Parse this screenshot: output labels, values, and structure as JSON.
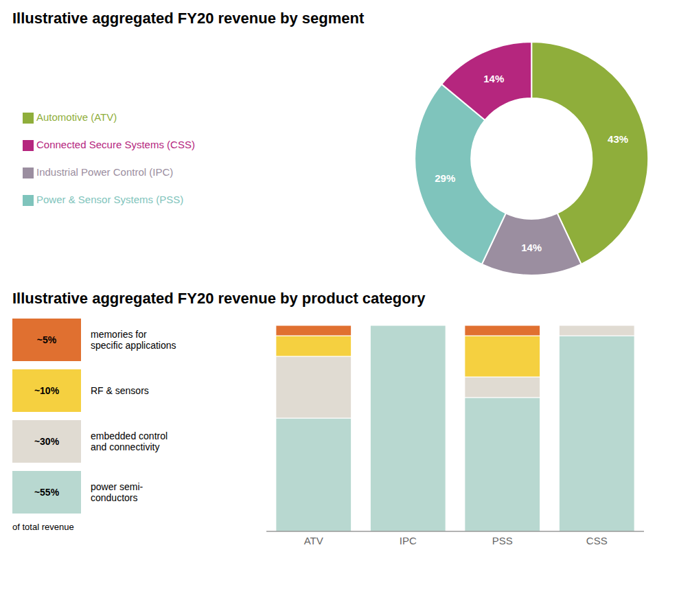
{
  "chart_data": [
    {
      "type": "pie",
      "title": "Illustrative aggregated FY20 revenue by segment",
      "categories": [
        "Automotive (ATV)",
        "Industrial Power Control (IPC)",
        "Power & Sensor Systems (PSS)",
        "Connected Secure Systems (CSS)"
      ],
      "values": [
        43,
        14,
        29,
        14
      ],
      "colors": [
        "#8fae3b",
        "#9b8ea0",
        "#7fc4bc",
        "#b5267e"
      ],
      "value_labels": [
        "43%",
        "14%",
        "29%",
        "14%"
      ],
      "data_labels": true,
      "legend": "left"
    },
    {
      "type": "bar",
      "title": "Illustrative aggregated FY20 revenue by product category",
      "categories": [
        "ATV",
        "IPC",
        "PSS",
        "CSS"
      ],
      "stacked": true,
      "series": [
        {
          "name": "power semi-\nconductors",
          "label": "~55%",
          "color": "#b8d8d0",
          "values": [
            0.55,
            1.0,
            0.65,
            0.95
          ]
        },
        {
          "name": "embedded control\nand connectivity",
          "label": "~30%",
          "color": "#e0dbd2",
          "values": [
            0.3,
            0.0,
            0.1,
            0.05
          ]
        },
        {
          "name": "RF & sensors",
          "label": "~10%",
          "color": "#f5d040",
          "values": [
            0.1,
            0.0,
            0.2,
            0.0
          ]
        },
        {
          "name": "memories for\nspecific applications",
          "label": "~5%",
          "color": "#e07030",
          "values": [
            0.05,
            0.0,
            0.05,
            0.0
          ]
        }
      ],
      "ylim": [
        0,
        1
      ],
      "tick_labels": "x",
      "legend": "left",
      "annotation": "of total revenue"
    }
  ]
}
